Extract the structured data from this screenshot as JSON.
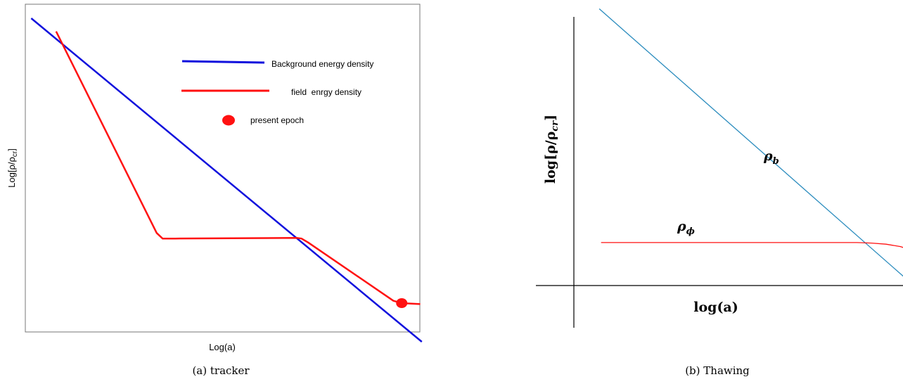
{
  "chart_data": [
    {
      "type": "line",
      "caption": "(a) tracker",
      "xlabel": "Log(a)",
      "ylabel_main": "Log[ρ/ρ",
      "ylabel_sub": "cr",
      "ylabel_end": "]",
      "xlim": [
        0,
        100
      ],
      "ylim": [
        0,
        100
      ],
      "frame": true,
      "legend_placement": "top-right",
      "legend": [
        {
          "label": "Background energy density",
          "color": "#1010dd",
          "marker": "line"
        },
        {
          "label": "field  enrgy density",
          "color": "#ff1111",
          "marker": "line"
        },
        {
          "label": "present epoch",
          "color": "#ff1111",
          "marker": "dot"
        }
      ],
      "series": [
        {
          "name": "Background energy density",
          "color": "#1010dd",
          "x": [
            1.5,
            100.5
          ],
          "y": [
            95.7,
            -3.0
          ]
        },
        {
          "name": "field  enrgy density",
          "color": "#ff1111",
          "x": [
            7.8,
            33.3,
            34.8,
            38.0,
            68.9,
            70.0,
            71.7,
            93.3,
            95.4,
            100.1
          ],
          "y": [
            91.7,
            30.2,
            28.5,
            28.5,
            28.7,
            28.5,
            27.3,
            9.5,
            8.8,
            8.5
          ]
        }
      ],
      "points": [
        {
          "name": "present epoch",
          "x": 95.4,
          "y": 8.8,
          "color": "#ff1111"
        }
      ]
    },
    {
      "type": "line",
      "caption": "(b) Thawing",
      "xlabel": "log(a)",
      "ylabel": "log[ρ/ρ",
      "ylabel_sub": "cr",
      "ylabel_end": "]",
      "xlim": [
        0,
        100
      ],
      "ylim": [
        0,
        100
      ],
      "frame": false,
      "annotations": [
        {
          "main": "ρ",
          "sub": "b",
          "x": 58,
          "y": 55
        },
        {
          "main": "ρ",
          "sub": "ϕ",
          "x": 32,
          "y": 20
        }
      ],
      "series": [
        {
          "name": "ρb",
          "color": "#2b8cbe",
          "x": [
            7.0,
            92.0
          ],
          "y": [
            103.0,
            2.0
          ]
        },
        {
          "name": "ρϕ",
          "color": "#ff1111",
          "x": [
            7.5,
            78.0,
            82.0,
            86.0,
            90.0,
            91.5
          ],
          "y": [
            16.0,
            16.0,
            15.8,
            15.4,
            14.5,
            13.8
          ]
        }
      ]
    }
  ]
}
